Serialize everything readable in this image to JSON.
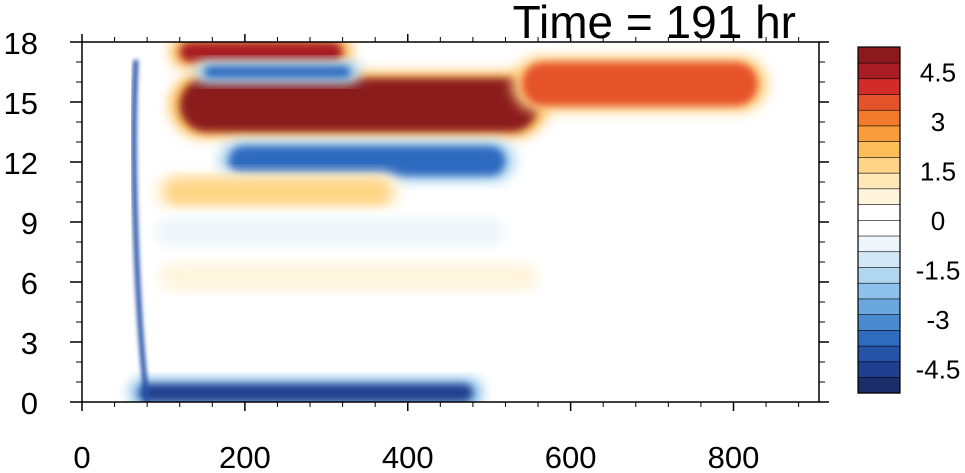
{
  "chart_data": {
    "type": "heatmap",
    "title": "Time = 191 hr",
    "xlim": [
      0,
      905
    ],
    "ylim": [
      0,
      18
    ],
    "x_ticks": [
      0,
      200,
      400,
      600,
      800
    ],
    "y_ticks": [
      0,
      3,
      6,
      9,
      12,
      15,
      18
    ],
    "x_tick_labels": [
      "0",
      "200",
      "400",
      "600",
      "800"
    ],
    "y_tick_labels": [
      "0",
      "3",
      "6",
      "9",
      "12",
      "15",
      "18"
    ],
    "colorbar": {
      "min": -5.25,
      "max": 5.25,
      "step": 0.5,
      "labels": [
        "4.5",
        "3",
        "1.5",
        "0",
        "-1.5",
        "-3",
        "-4.5"
      ],
      "label_values": [
        4.5,
        3,
        1.5,
        0,
        -1.5,
        -3,
        -4.5
      ],
      "colors": [
        "#1b2d6b",
        "#203f8f",
        "#2553a8",
        "#2f6bbf",
        "#4a8ad0",
        "#6aa7de",
        "#8dc3ea",
        "#b1d7f0",
        "#d3e8f6",
        "#eef6fc",
        "#ffffff",
        "#ffffff",
        "#fff5df",
        "#ffe8b5",
        "#ffd486",
        "#fdbd59",
        "#f99c3c",
        "#f27a2b",
        "#e5532a",
        "#d12c27",
        "#a81c23",
        "#8b1a1c"
      ]
    },
    "features": [
      {
        "name": "upper-positive-band",
        "x": [
          120,
          560
        ],
        "y": [
          13.5,
          16.2
        ],
        "value": 5.25
      },
      {
        "name": "upper-positive-band-extension",
        "x": [
          540,
          830
        ],
        "y": [
          14.8,
          17.0
        ],
        "value": 3.5
      },
      {
        "name": "top-positive-streak",
        "x": [
          120,
          320
        ],
        "y": [
          17.0,
          18.0
        ],
        "value": 4.5
      },
      {
        "name": "top-negative-streak",
        "x": [
          150,
          330
        ],
        "y": [
          16.2,
          16.8
        ],
        "value": -3.5
      },
      {
        "name": "mid-negative-band",
        "x": [
          180,
          520
        ],
        "y": [
          11.3,
          12.8
        ],
        "value": -3.5
      },
      {
        "name": "positive-band-10km",
        "x": [
          100,
          380
        ],
        "y": [
          9.8,
          11.2
        ],
        "value": 1.5
      },
      {
        "name": "negative-band-8km",
        "x": [
          90,
          520
        ],
        "y": [
          7.8,
          9.2
        ],
        "value": -0.8
      },
      {
        "name": "positive-band-6km",
        "x": [
          95,
          560
        ],
        "y": [
          5.5,
          7.0
        ],
        "value": 0.8
      },
      {
        "name": "surface-negative-band",
        "x": [
          70,
          480
        ],
        "y": [
          0,
          0.9
        ],
        "value": -4.5
      },
      {
        "name": "front-line",
        "x": [
          50,
          85
        ],
        "y": [
          0,
          17.0
        ],
        "value": -4.0
      }
    ]
  }
}
